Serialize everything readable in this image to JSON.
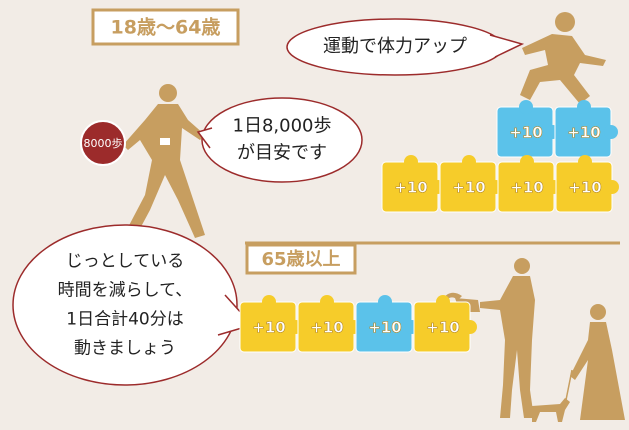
{
  "groups": [
    {
      "label": "18歳〜64歳",
      "badge": "8000歩",
      "bubbles": [
        {
          "lines": [
            "運動で体力アップ"
          ]
        },
        {
          "lines": [
            "1日8,000歩",
            "が目安です"
          ]
        }
      ],
      "rows": [
        [
          {
            "label": "+10",
            "color": "#5bc2ea"
          },
          {
            "label": "+10",
            "color": "#5bc2ea"
          }
        ],
        [
          {
            "label": "+10",
            "color": "#f6cc2a"
          },
          {
            "label": "+10",
            "color": "#f6cc2a"
          },
          {
            "label": "+10",
            "color": "#f6cc2a"
          },
          {
            "label": "+10",
            "color": "#f6cc2a"
          }
        ]
      ]
    },
    {
      "label": "65歳以上",
      "bubbles": [
        {
          "lines": [
            "じっとしている",
            "時間を減らして、",
            "1日合計40分は",
            "動きましょう"
          ]
        }
      ],
      "rows": [
        [
          {
            "label": "+10",
            "color": "#f6cc2a"
          },
          {
            "label": "+10",
            "color": "#f6cc2a"
          },
          {
            "label": "+10",
            "color": "#5bc2ea"
          },
          {
            "label": "+10",
            "color": "#f6cc2a"
          }
        ]
      ]
    }
  ]
}
